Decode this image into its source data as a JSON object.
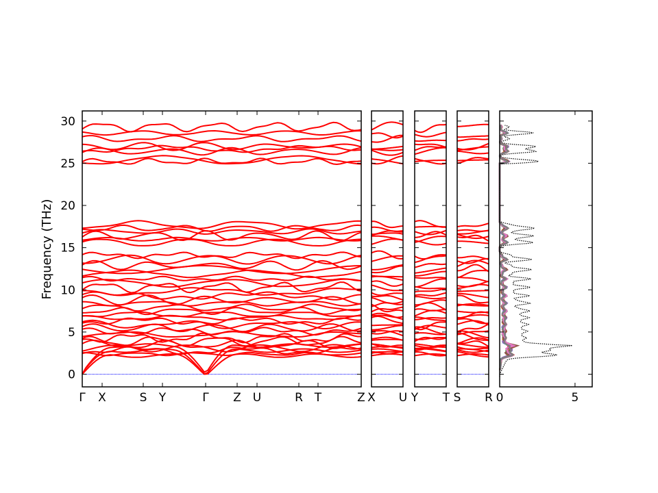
{
  "chart_data": {
    "type": "line",
    "title": "",
    "ylabel": "Frequency (THz)",
    "ylim": [
      -1.5,
      31.2
    ],
    "yticks": [
      0,
      5,
      10,
      15,
      20,
      25,
      30
    ],
    "band_color": "#ff0000",
    "zero_line_color": "#0000ff",
    "panels": [
      {
        "labels": [
          "Γ",
          "X",
          "S",
          "Y",
          "Γ",
          "Z",
          "U",
          "R",
          "T",
          "Z"
        ],
        "distances": [
          0,
          0.29,
          0.89,
          1.17,
          1.8,
          2.26,
          2.55,
          3.16,
          3.44,
          4.07
        ]
      },
      {
        "labels": [
          "X",
          "U"
        ],
        "distances": [
          0,
          0.46
        ]
      },
      {
        "labels": [
          "Y",
          "T"
        ],
        "distances": [
          0,
          0.46
        ]
      },
      {
        "labels": [
          "S",
          "R"
        ],
        "distances": [
          0,
          0.46
        ]
      }
    ],
    "acoustic_max": [
      2.2,
      2.8,
      3.4
    ],
    "optical_bands": [
      2.4,
      2.8,
      3.1,
      3.5,
      3.9,
      4.3,
      4.7,
      5.1,
      5.5,
      5.9,
      6.3,
      6.7,
      7.1,
      7.5,
      7.9,
      8.4,
      8.8,
      9.3,
      9.8,
      10.3,
      10.8,
      11.3,
      11.9,
      12.4,
      12.9,
      13.6,
      14.1,
      15.6,
      16.0,
      16.4,
      16.9,
      17.3,
      17.7,
      25.2,
      25.4,
      26.4,
      26.7,
      27.0,
      27.9,
      28.6,
      29.3
    ],
    "dos": {
      "xlabel": "",
      "xlim": [
        0,
        6.14
      ],
      "xticks": [
        0,
        5
      ],
      "total_color": "#000000",
      "partial_colors": [
        "#1f77b4",
        "#ff7f0e",
        "#2ca02c",
        "#d62728",
        "#9467bd",
        "#8c564b",
        "#e377c2",
        "#7f7f7f"
      ]
    }
  }
}
